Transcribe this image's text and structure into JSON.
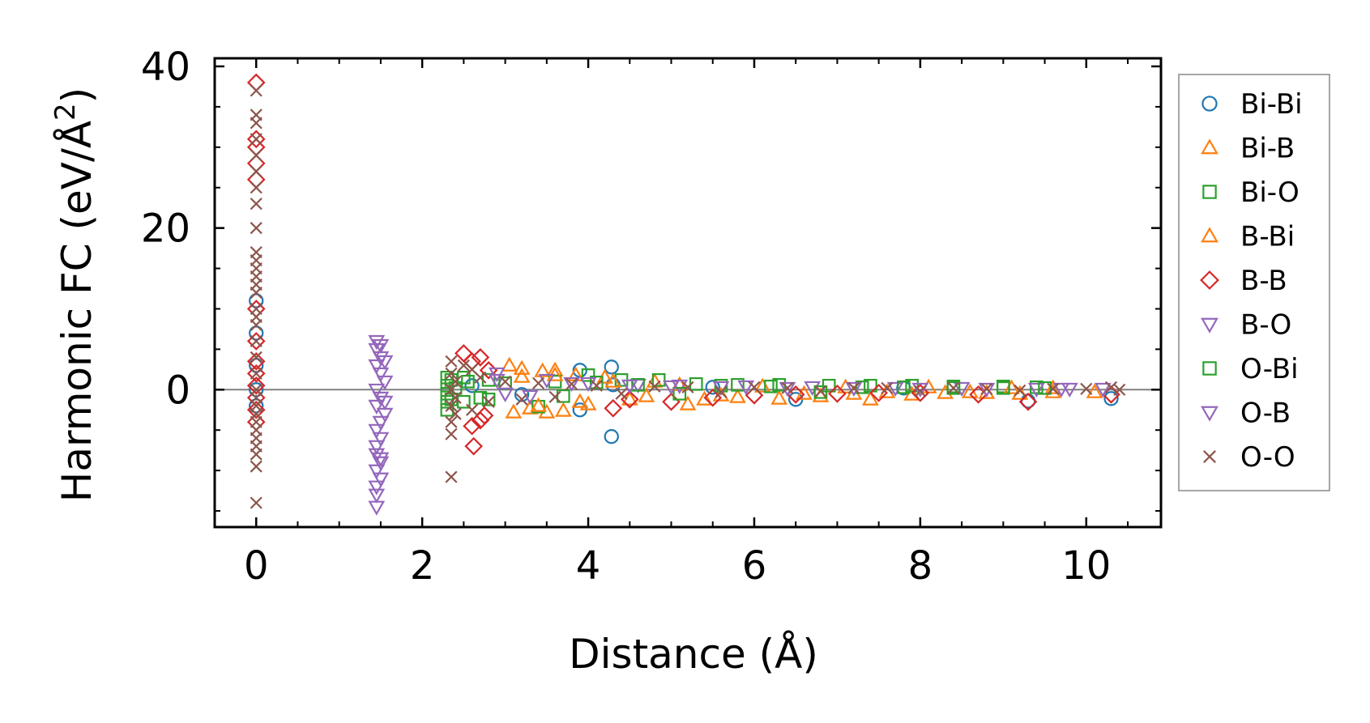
{
  "chart_data": {
    "type": "scatter",
    "xlabel": "Distance (Å)",
    "ylabel_main": "Harmonic FC (eV/Å",
    "ylabel_sup": "2",
    "ylabel_close": ")",
    "xlim": [
      -0.5,
      10.9
    ],
    "ylim": [
      -17,
      41
    ],
    "xticks": [
      0,
      2,
      4,
      6,
      8,
      10
    ],
    "xtick_labels": [
      "0",
      "2",
      "4",
      "6",
      "8",
      "10"
    ],
    "yticks": [
      0,
      20,
      40
    ],
    "ytick_labels": [
      "0",
      "20",
      "40"
    ],
    "zero_line": true,
    "grid": false,
    "legend_position": "right",
    "series": [
      {
        "name": "Bi-Bi",
        "marker": "circle",
        "color": "#1f77b4",
        "points": [
          [
            0,
            11
          ],
          [
            0,
            7
          ],
          [
            0,
            3
          ],
          [
            0,
            0
          ],
          [
            0,
            -2
          ],
          [
            3.9,
            2.4
          ],
          [
            3.9,
            -2.5
          ],
          [
            4.28,
            2.8
          ],
          [
            4.28,
            -5.8
          ],
          [
            4.3,
            0.6
          ],
          [
            6.5,
            -1.2
          ],
          [
            9.3,
            -1.4
          ],
          [
            10.3,
            -1.1
          ],
          [
            2.6,
            0.5
          ],
          [
            3.2,
            -0.6
          ],
          [
            5.5,
            0.3
          ],
          [
            7.8,
            0.2
          ]
        ]
      },
      {
        "name": "Bi-B",
        "marker": "triangle-up",
        "color": "#ff7f0e",
        "points": [
          [
            3.05,
            3
          ],
          [
            3.1,
            -2.8
          ],
          [
            3.2,
            2.6
          ],
          [
            3.3,
            -2.3
          ],
          [
            3.45,
            2.3
          ],
          [
            3.5,
            -2.8
          ],
          [
            3.6,
            2.4
          ],
          [
            3.7,
            -2.6
          ],
          [
            3.85,
            1.8
          ],
          [
            4.0,
            -1.8
          ],
          [
            4.2,
            1.5
          ],
          [
            4.5,
            -1.2
          ],
          [
            4.8,
            1.0
          ],
          [
            5.2,
            -1.8
          ],
          [
            5.4,
            -1.2
          ],
          [
            5.8,
            -0.9
          ],
          [
            6.3,
            -1.1
          ],
          [
            6.8,
            -0.8
          ],
          [
            7.2,
            -0.5
          ],
          [
            7.4,
            -1.2
          ],
          [
            7.9,
            -0.6
          ],
          [
            8.3,
            -0.4
          ],
          [
            8.8,
            -0.4
          ],
          [
            9.2,
            -0.5
          ],
          [
            9.6,
            -0.3
          ],
          [
            10.1,
            -0.3
          ]
        ]
      },
      {
        "name": "Bi-O",
        "marker": "square",
        "color": "#2ca02c",
        "points": [
          [
            2.3,
            1.5
          ],
          [
            2.3,
            0.5
          ],
          [
            2.3,
            -0.5
          ],
          [
            2.3,
            -1.5
          ],
          [
            2.3,
            -2.5
          ],
          [
            2.5,
            1.5
          ],
          [
            2.5,
            -1.5
          ],
          [
            2.8,
            1.2
          ],
          [
            2.8,
            -1.2
          ],
          [
            3.4,
            -2.1
          ],
          [
            3.6,
            1.0
          ],
          [
            4.0,
            1.8
          ],
          [
            4.4,
            1.2
          ],
          [
            4.85,
            1.2
          ],
          [
            5.3,
            0.7
          ],
          [
            5.8,
            0.6
          ],
          [
            6.3,
            0.6
          ],
          [
            6.9,
            0.5
          ],
          [
            7.4,
            0.5
          ],
          [
            7.9,
            0.5
          ],
          [
            8.4,
            0.4
          ],
          [
            9.0,
            0.4
          ],
          [
            9.4,
            0.3
          ]
        ]
      },
      {
        "name": "B-Bi",
        "marker": "triangle-up",
        "color": "#ff7f0e",
        "points": [
          [
            3.2,
            1.6
          ],
          [
            3.4,
            -2.0
          ],
          [
            3.6,
            1.8
          ],
          [
            3.9,
            -1.5
          ],
          [
            4.3,
            1.0
          ],
          [
            4.7,
            -0.8
          ],
          [
            5.1,
            0.6
          ],
          [
            5.6,
            -0.7
          ],
          [
            6.1,
            0.4
          ],
          [
            6.6,
            -0.5
          ],
          [
            7.1,
            0.3
          ],
          [
            7.6,
            -0.3
          ],
          [
            8.1,
            0.3
          ],
          [
            8.6,
            -0.3
          ],
          [
            9.1,
            0.2
          ],
          [
            9.6,
            0.2
          ]
        ]
      },
      {
        "name": "B-B",
        "marker": "diamond",
        "color": "#d62728",
        "points": [
          [
            0,
            38
          ],
          [
            0,
            31
          ],
          [
            0,
            30
          ],
          [
            0,
            28
          ],
          [
            0,
            26
          ],
          [
            0,
            10
          ],
          [
            0,
            6
          ],
          [
            0,
            3.5
          ],
          [
            0,
            2
          ],
          [
            0,
            0.5
          ],
          [
            0,
            -1
          ],
          [
            0,
            -2.5
          ],
          [
            0,
            -4
          ],
          [
            2.5,
            4.5
          ],
          [
            2.6,
            3.5
          ],
          [
            2.7,
            4
          ],
          [
            2.62,
            -7
          ],
          [
            2.6,
            -4.5
          ],
          [
            2.7,
            -3.8
          ],
          [
            2.75,
            -3.2
          ],
          [
            2.8,
            2.4
          ],
          [
            4.3,
            -2.3
          ],
          [
            4.5,
            -1.2
          ],
          [
            5.0,
            -1.5
          ],
          [
            5.5,
            -1.0
          ],
          [
            6.0,
            -0.7
          ],
          [
            6.5,
            -0.6
          ],
          [
            7.0,
            -0.5
          ],
          [
            7.5,
            -0.4
          ],
          [
            8.0,
            -0.4
          ],
          [
            8.7,
            -0.6
          ],
          [
            9.3,
            -1.5
          ],
          [
            10.3,
            -0.6
          ]
        ]
      },
      {
        "name": "B-O",
        "marker": "triangle-down",
        "color": "#9467bd",
        "points": [
          [
            1.45,
            6
          ],
          [
            1.45,
            5
          ],
          [
            1.5,
            4
          ],
          [
            1.45,
            3
          ],
          [
            1.5,
            2
          ],
          [
            1.55,
            1
          ],
          [
            1.45,
            0
          ],
          [
            1.5,
            -1
          ],
          [
            1.45,
            -2
          ],
          [
            1.55,
            -3
          ],
          [
            1.5,
            -4
          ],
          [
            1.45,
            -5
          ],
          [
            1.5,
            -6
          ],
          [
            1.45,
            -7
          ],
          [
            1.45,
            -8
          ],
          [
            1.5,
            -9
          ],
          [
            1.45,
            -10
          ],
          [
            1.5,
            -11
          ],
          [
            1.45,
            -12
          ],
          [
            1.45,
            -13
          ],
          [
            1.45,
            -14.5
          ],
          [
            2.9,
            1.2
          ],
          [
            3.3,
            -0.8
          ],
          [
            3.8,
            0.8
          ],
          [
            4.6,
            0.6
          ],
          [
            5.1,
            0.5
          ],
          [
            5.9,
            0.4
          ],
          [
            6.7,
            0.3
          ],
          [
            7.7,
            0.2
          ],
          [
            8.5,
            0.2
          ],
          [
            9.4,
            0.1
          ],
          [
            9.8,
            0.1
          ]
        ]
      },
      {
        "name": "O-Bi",
        "marker": "square",
        "color": "#2ca02c",
        "points": [
          [
            2.35,
            1.2
          ],
          [
            2.35,
            -1.2
          ],
          [
            2.4,
            0.2
          ],
          [
            2.55,
            1.0
          ],
          [
            2.7,
            -1.0
          ],
          [
            3.0,
            0.8
          ],
          [
            3.7,
            -0.8
          ],
          [
            4.1,
            0.9
          ],
          [
            4.6,
            0.6
          ],
          [
            5.1,
            -0.5
          ],
          [
            5.6,
            0.5
          ],
          [
            6.2,
            0.4
          ],
          [
            6.8,
            -0.3
          ],
          [
            7.3,
            0.3
          ],
          [
            7.8,
            0.3
          ],
          [
            8.4,
            0.2
          ],
          [
            9.0,
            0.2
          ],
          [
            9.5,
            0.2
          ]
        ]
      },
      {
        "name": "O-B",
        "marker": "triangle-down",
        "color": "#9467bd",
        "points": [
          [
            1.5,
            5.5
          ],
          [
            1.55,
            3.5
          ],
          [
            1.55,
            -1.5
          ],
          [
            1.5,
            -8.5
          ],
          [
            2.9,
            2.0
          ],
          [
            3.0,
            -0.5
          ],
          [
            3.5,
            1.2
          ],
          [
            4.0,
            0.8
          ],
          [
            4.5,
            0.5
          ],
          [
            5.0,
            0.4
          ],
          [
            5.6,
            0.3
          ],
          [
            6.4,
            0.2
          ],
          [
            7.2,
            0.2
          ],
          [
            8.0,
            0.1
          ],
          [
            8.8,
            0.1
          ],
          [
            9.7,
            0.1
          ],
          [
            10.2,
            0.1
          ]
        ]
      },
      {
        "name": "O-O",
        "marker": "x",
        "color": "#8c564b",
        "points": [
          [
            0,
            37
          ],
          [
            0,
            34
          ],
          [
            0,
            33
          ],
          [
            0,
            31
          ],
          [
            0,
            29
          ],
          [
            0,
            27
          ],
          [
            0,
            25
          ],
          [
            0,
            23
          ],
          [
            0,
            20
          ],
          [
            0,
            17
          ],
          [
            0,
            16
          ],
          [
            0,
            15
          ],
          [
            0,
            14
          ],
          [
            0,
            13
          ],
          [
            0,
            12
          ],
          [
            0,
            10
          ],
          [
            0,
            9
          ],
          [
            0,
            8
          ],
          [
            0,
            6
          ],
          [
            0,
            4
          ],
          [
            0,
            2
          ],
          [
            0,
            0
          ],
          [
            0,
            -1
          ],
          [
            0,
            -2
          ],
          [
            0,
            -3
          ],
          [
            0,
            -4
          ],
          [
            0,
            -5
          ],
          [
            0,
            -6
          ],
          [
            0,
            -7
          ],
          [
            0,
            -8
          ],
          [
            0,
            -9.5
          ],
          [
            0,
            -14
          ],
          [
            2.35,
            3.5
          ],
          [
            2.35,
            2
          ],
          [
            2.4,
            1
          ],
          [
            2.35,
            0
          ],
          [
            2.4,
            -1
          ],
          [
            2.35,
            -2
          ],
          [
            2.4,
            -3
          ],
          [
            2.35,
            -4
          ],
          [
            2.35,
            -5.5
          ],
          [
            2.35,
            -10.8
          ],
          [
            2.5,
            3
          ],
          [
            2.6,
            2.5
          ],
          [
            2.6,
            -2.5
          ],
          [
            2.7,
            1.5
          ],
          [
            2.8,
            -1.5
          ],
          [
            3.0,
            1
          ],
          [
            3.2,
            -1.2
          ],
          [
            3.4,
            0.8
          ],
          [
            3.6,
            -0.9
          ],
          [
            3.8,
            0.7
          ],
          [
            4.1,
            0.5
          ],
          [
            4.4,
            -0.5
          ],
          [
            4.8,
            0.4
          ],
          [
            5.2,
            0.3
          ],
          [
            5.6,
            -0.3
          ],
          [
            6.0,
            0.3
          ],
          [
            6.4,
            0.2
          ],
          [
            6.8,
            -0.2
          ],
          [
            7.2,
            0.2
          ],
          [
            7.6,
            0.2
          ],
          [
            8.0,
            -0.2
          ],
          [
            8.4,
            0.2
          ],
          [
            8.8,
            0.1
          ],
          [
            9.2,
            -0.1
          ],
          [
            9.6,
            0.1
          ],
          [
            10.0,
            0.1
          ],
          [
            10.3,
            0.3
          ],
          [
            10.4,
            0.0
          ]
        ]
      }
    ]
  }
}
